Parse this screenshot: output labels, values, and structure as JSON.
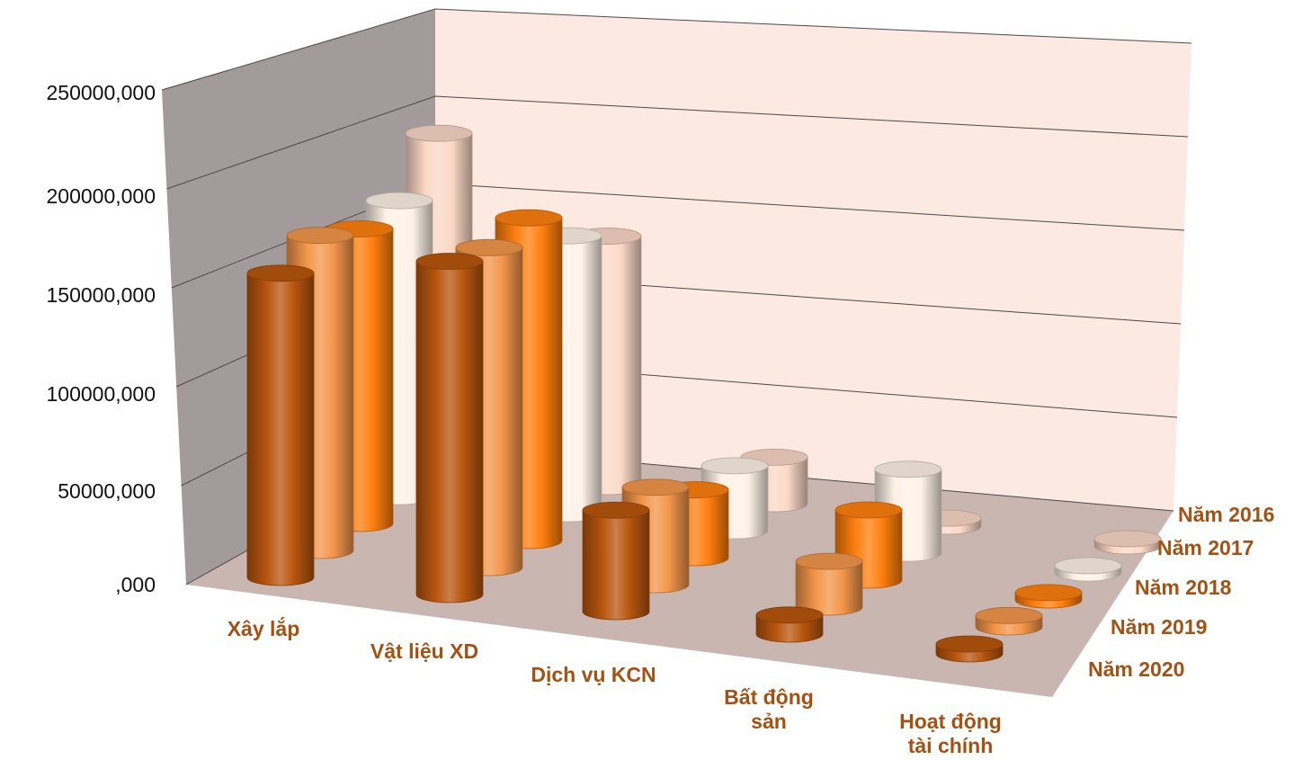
{
  "chart_data": {
    "type": "bar",
    "style": "3d-cylinder",
    "title": "",
    "xlabel": "",
    "ylabel": "",
    "ylim": [
      0,
      250000000
    ],
    "y_ticks": [
      "250000,000",
      "200000,000",
      "150000,000",
      "100000,000",
      "50000,000",
      ",000"
    ],
    "categories": [
      [
        "Xây lắp"
      ],
      [
        "Vật liệu XD"
      ],
      [
        "Dịch vụ KCN"
      ],
      [
        "Bất động",
        "sản"
      ],
      [
        "Hoạt động",
        "tài chính"
      ]
    ],
    "series": [
      {
        "name": "Năm 2016",
        "color": "#fbd8c6",
        "values": [
          250000000,
          170000000,
          30000000,
          5000000,
          3000000
        ]
      },
      {
        "name": "Năm 2017",
        "color": "#fdf2e6",
        "values": [
          210000000,
          180000000,
          40000000,
          50000000,
          3000000
        ]
      },
      {
        "name": "Năm 2018",
        "color": "#ff7f0e",
        "values": [
          200000000,
          200000000,
          40000000,
          40000000,
          4000000
        ]
      },
      {
        "name": "Năm 2019",
        "color": "#f3964a",
        "values": [
          205000000,
          190000000,
          55000000,
          25000000,
          6000000
        ]
      },
      {
        "name": "Năm 2020",
        "color": "#b8560e",
        "values": [
          190000000,
          190000000,
          55000000,
          10000000,
          5000000
        ]
      }
    ],
    "grid": true,
    "legend": "right"
  }
}
